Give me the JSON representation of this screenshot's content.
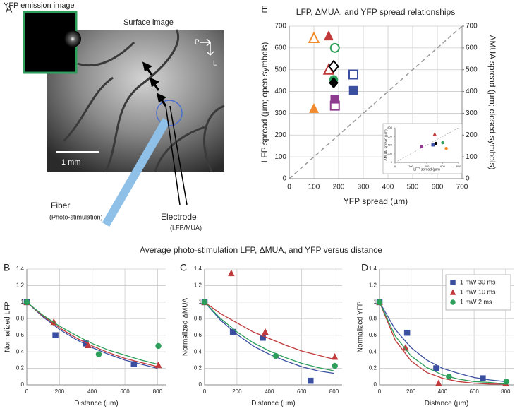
{
  "image_panel": {
    "label": "A",
    "inset_title": "YFP emission image",
    "title": "Surface image",
    "scale_bar": "1 mm",
    "compass_p": "P",
    "compass_l": "L",
    "fiber": "Fiber",
    "fiber_sub": "(Photo-stimulation)",
    "electrode": "Electrode",
    "electrode_sub": "(LFP/MUA)"
  },
  "section_title": "Average photo-stimulation LFP, ΔMUA, and YFP versus distance",
  "chart_data": [
    {
      "type": "scatter",
      "label": "E",
      "title": "LFP, ΔMUA, and YFP spread relationships",
      "xlabel": "YFP spread (µm)",
      "ylabel": "LFP spread (µm; open symbols)",
      "y2label": "ΔMUA spread (µm; closed symbols)",
      "xlim": [
        0,
        700
      ],
      "xticks": [
        0,
        100,
        200,
        300,
        400,
        500,
        600,
        700
      ],
      "ylim": [
        0,
        700
      ],
      "yticks": [
        0,
        100,
        200,
        300,
        400,
        500,
        600,
        700
      ],
      "y2lim": [
        0,
        700
      ],
      "y2ticks": [
        0,
        100,
        200,
        300,
        400,
        500,
        600,
        700
      ],
      "grid": true,
      "diagonal": true,
      "series": [
        {
          "filled": false,
          "x": [
            100,
            160,
            185,
            180,
            185,
            260
          ],
          "values": [
            645,
            500,
            600,
            515,
            335,
            478
          ],
          "colors": [
            "#f08a2c",
            "#c0393b",
            "#2e9e5b",
            "#000000",
            "#8e3a8e",
            "#3b4fa0"
          ],
          "markers": [
            "triangle",
            "triangle",
            "circle",
            "diamond",
            "square",
            "square"
          ]
        },
        {
          "filled": true,
          "axis": "y2",
          "x": [
            100,
            160,
            180,
            180,
            185,
            260
          ],
          "values": [
            322,
            655,
            455,
            440,
            365,
            405
          ],
          "colors": [
            "#f08a2c",
            "#c0393b",
            "#2e9e5b",
            "#000000",
            "#8e3a8e",
            "#3b4fa0"
          ],
          "markers": [
            "triangle",
            "triangle",
            "circle",
            "diamond",
            "square",
            "square"
          ]
        }
      ]
    },
    {
      "type": "scatter",
      "xlabel": "LFP spread (µm)",
      "ylabel": "ΔMUA, spread (µm)",
      "xlim": [
        0,
        800
      ],
      "xticks": [
        0,
        200,
        400,
        600,
        800
      ],
      "ylim": [
        0,
        800
      ],
      "yticks": [
        0,
        200,
        400,
        600,
        800
      ],
      "diagonal": true,
      "series": [
        {
          "filled": true,
          "x": [
            645,
            500,
            600,
            515,
            335,
            478
          ],
          "values": [
            322,
            655,
            455,
            440,
            365,
            405
          ],
          "colors": [
            "#f08a2c",
            "#c0393b",
            "#2e9e5b",
            "#000000",
            "#8e3a8e",
            "#3b4fa0"
          ],
          "markers": [
            "circle",
            "triangle",
            "circle",
            "circle",
            "square",
            "square"
          ]
        }
      ]
    },
    {
      "type": "fit",
      "label": "B",
      "xlabel": "Distance (µm)",
      "ylabel": "Normalized LFP",
      "xlim": [
        0,
        850
      ],
      "xticks": [
        0,
        200,
        400,
        600,
        800
      ],
      "ylim": [
        0,
        1.4
      ],
      "yticks": [
        0,
        0.2,
        0.4,
        0.6,
        0.8,
        1,
        1.2,
        1.4
      ],
      "grid": true,
      "fit_x": [
        0,
        100,
        200,
        300,
        400,
        500,
        600,
        700,
        800
      ],
      "series": [
        {
          "color": "#3b4fa0",
          "marker": "square",
          "x": [
            0,
            175,
            360,
            655
          ],
          "values": [
            1,
            0.6,
            0.5,
            0.25
          ],
          "fit": [
            1,
            0.82,
            0.67,
            0.55,
            0.45,
            0.37,
            0.3,
            0.25,
            0.2
          ]
        },
        {
          "color": "#c0393b",
          "marker": "triangle",
          "x": [
            0,
            165,
            375,
            805
          ],
          "values": [
            1,
            0.76,
            0.48,
            0.24
          ],
          "fit": [
            1,
            0.83,
            0.69,
            0.57,
            0.47,
            0.39,
            0.32,
            0.27,
            0.22
          ]
        },
        {
          "color": "#2e9e5b",
          "marker": "circle",
          "x": [
            0,
            440,
            805
          ],
          "values": [
            1,
            0.37,
            0.47
          ],
          "fit": [
            1,
            0.84,
            0.71,
            0.6,
            0.5,
            0.42,
            0.36,
            0.3,
            0.25
          ]
        }
      ]
    },
    {
      "type": "fit",
      "label": "C",
      "xlabel": "Distance (µm)",
      "ylabel": "Normalized ΔMUA",
      "xlim": [
        0,
        850
      ],
      "xticks": [
        0,
        200,
        400,
        600,
        800
      ],
      "ylim": [
        0,
        1.4
      ],
      "yticks": [
        0,
        0.2,
        0.4,
        0.6,
        0.8,
        1,
        1.2,
        1.4
      ],
      "grid": true,
      "fit_x": [
        0,
        100,
        200,
        300,
        400,
        500,
        600,
        700,
        800
      ],
      "series": [
        {
          "color": "#3b4fa0",
          "marker": "square",
          "x": [
            0,
            175,
            360,
            655
          ],
          "values": [
            1,
            0.64,
            0.57,
            0.05
          ],
          "fit": [
            1,
            0.78,
            0.61,
            0.47,
            0.37,
            0.29,
            0.22,
            0.17,
            0.14
          ]
        },
        {
          "color": "#c0393b",
          "marker": "triangle",
          "x": [
            0,
            165,
            375,
            805
          ],
          "values": [
            1,
            1.35,
            0.64,
            0.34
          ],
          "fit": [
            1,
            0.86,
            0.75,
            0.64,
            0.56,
            0.48,
            0.41,
            0.36,
            0.31
          ]
        },
        {
          "color": "#2e9e5b",
          "marker": "circle",
          "x": [
            0,
            440,
            805
          ],
          "values": [
            1,
            0.35,
            0.23
          ],
          "fit": [
            1,
            0.8,
            0.64,
            0.51,
            0.41,
            0.33,
            0.26,
            0.21,
            0.17
          ]
        }
      ]
    },
    {
      "type": "fit",
      "label": "D",
      "xlabel": "Distance (µm)",
      "ylabel": "Normalized YFP",
      "xlim": [
        0,
        850
      ],
      "xticks": [
        0,
        200,
        400,
        600,
        800
      ],
      "ylim": [
        0,
        1.4
      ],
      "yticks": [
        0,
        0.2,
        0.4,
        0.6,
        0.8,
        1,
        1.2,
        1.4
      ],
      "grid": true,
      "legend": "upper right",
      "fit_x": [
        0,
        100,
        200,
        300,
        400,
        500,
        600,
        700,
        800
      ],
      "series": [
        {
          "name": "1 mW 30 ms",
          "color": "#3b4fa0",
          "marker": "square",
          "x": [
            0,
            175,
            360,
            655
          ],
          "values": [
            1,
            0.63,
            0.2,
            0.08
          ],
          "fit": [
            1,
            0.67,
            0.45,
            0.3,
            0.2,
            0.14,
            0.09,
            0.06,
            0.04
          ]
        },
        {
          "name": "1 mW 10 ms",
          "color": "#c0393b",
          "marker": "triangle",
          "x": [
            0,
            165,
            375,
            800
          ],
          "values": [
            1,
            0.45,
            0.02,
            0.02
          ],
          "fit": [
            1,
            0.54,
            0.29,
            0.15,
            0.08,
            0.04,
            0.02,
            0.01,
            0.01
          ]
        },
        {
          "name": "1 mW 2 ms",
          "color": "#2e9e5b",
          "marker": "circle",
          "x": [
            0,
            440,
            805
          ],
          "values": [
            1,
            0.1,
            0.04
          ],
          "fit": [
            1,
            0.59,
            0.35,
            0.21,
            0.12,
            0.07,
            0.04,
            0.03,
            0.01
          ]
        }
      ]
    }
  ]
}
